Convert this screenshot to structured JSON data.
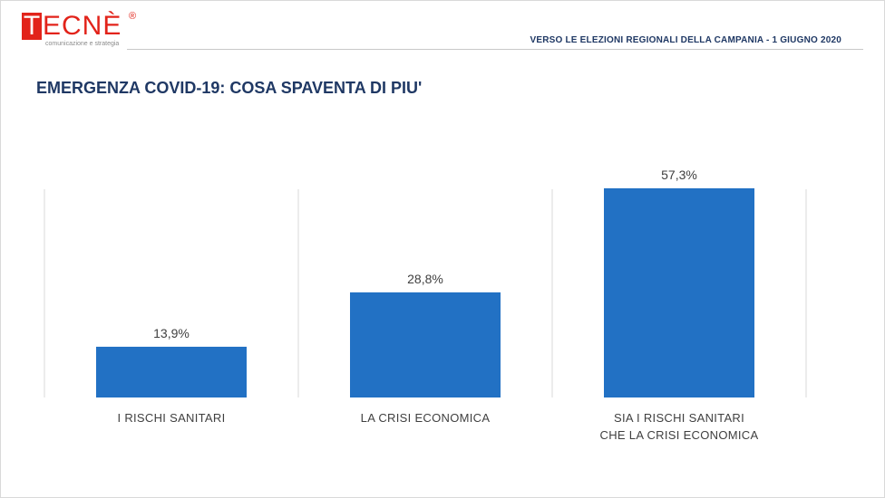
{
  "brand": {
    "logo_first_letter": "T",
    "logo_rest": "ECNÈ",
    "logo_registered": "®",
    "logo_tagline": "comunicazione e strategia",
    "color": "#e2231a"
  },
  "header": {
    "title": "VERSO LE ELEZIONI REGIONALI DELLA CAMPANIA - 1 GIUGNO 2020"
  },
  "page": {
    "title": "EMERGENZA COVID-19: COSA SPAVENTA DI PIU'"
  },
  "chart_data": {
    "type": "bar",
    "categories": [
      [
        "I RISCHI SANITARI"
      ],
      [
        "LA CRISI ECONOMICA"
      ],
      [
        "SIA I RISCHI SANITARI",
        "CHE LA CRISI ECONOMICA"
      ]
    ],
    "values": [
      13.9,
      28.8,
      57.3
    ],
    "value_labels": [
      "13,9%",
      "28,8%",
      "57,3%"
    ],
    "ylim": [
      0,
      62
    ],
    "grid": false,
    "bar_color": "#2271c4"
  }
}
